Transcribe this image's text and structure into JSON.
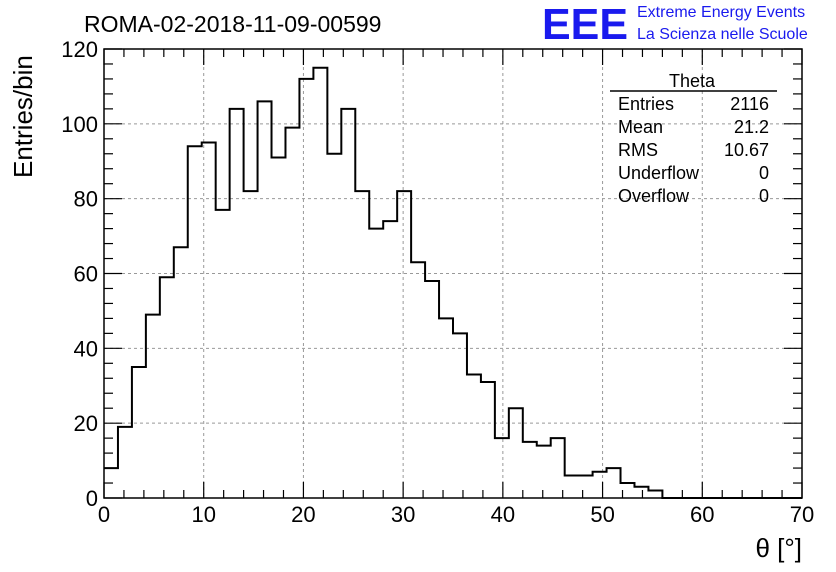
{
  "chart_data": {
    "type": "bar",
    "title": "ROMA-02-2018-11-09-00599",
    "xlabel": "θ [°]",
    "ylabel": "Entries/bin",
    "xlim": [
      0,
      70
    ],
    "ylim": [
      0,
      120
    ],
    "grid": true,
    "x_ticks": [
      0,
      10,
      20,
      30,
      40,
      50,
      60,
      70
    ],
    "y_ticks": [
      0,
      20,
      40,
      60,
      80,
      100,
      120
    ],
    "bin_width": 1.4,
    "values": [
      8,
      19,
      35,
      49,
      59,
      67,
      94,
      95,
      77,
      104,
      82,
      106,
      91,
      99,
      112,
      115,
      92,
      104,
      82,
      72,
      74,
      82,
      63,
      58,
      48,
      44,
      33,
      31,
      16,
      24,
      15,
      14,
      16,
      6,
      6,
      7,
      8,
      4,
      3,
      2,
      0,
      0,
      0,
      0,
      0,
      0,
      0,
      0,
      0,
      0
    ],
    "stats_box": {
      "title": "Theta",
      "rows": [
        {
          "label": "Entries",
          "value": "2116"
        },
        {
          "label": "Mean",
          "value": "21.2"
        },
        {
          "label": "RMS",
          "value": "10.67"
        },
        {
          "label": "Underflow",
          "value": "0"
        },
        {
          "label": "Overflow",
          "value": "0"
        }
      ]
    }
  },
  "logo": {
    "mark": "EEE",
    "line1": "Extreme Energy Events",
    "line2": "La Scienza nelle Scuole",
    "color": "#1a1aee"
  }
}
